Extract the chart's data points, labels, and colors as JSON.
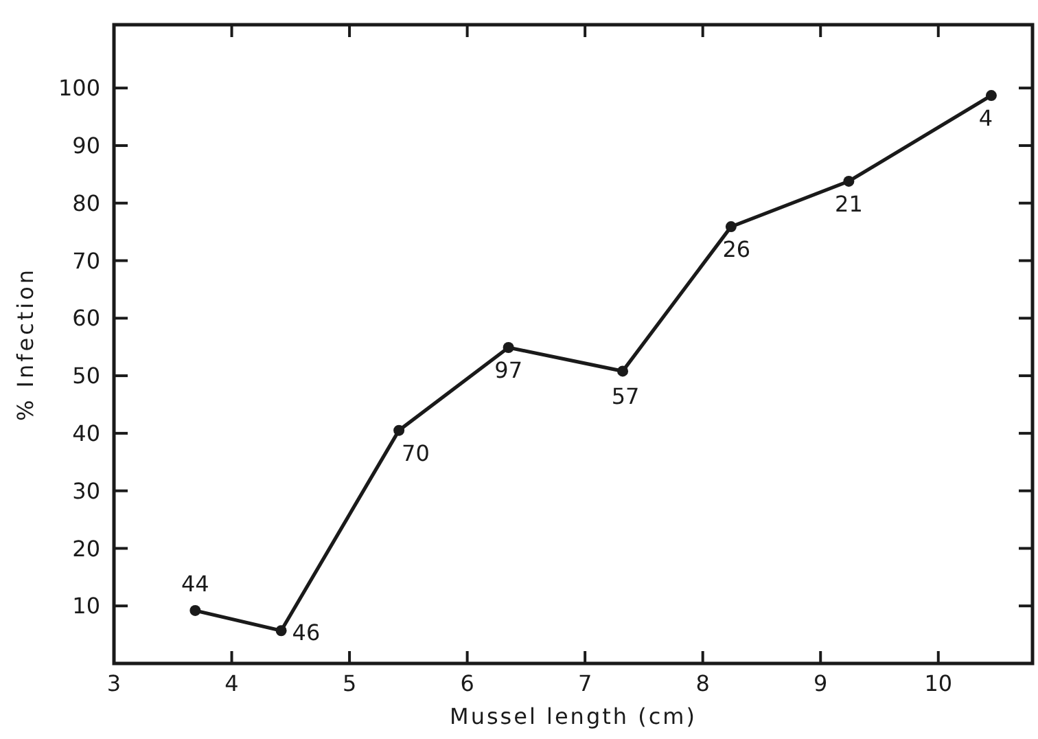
{
  "chart_data": {
    "type": "line",
    "xlabel": "Mussel length (cm)",
    "ylabel": "% Infection",
    "x": [
      3.69,
      4.42,
      5.42,
      6.35,
      7.32,
      8.24,
      9.24,
      10.45
    ],
    "series": [
      {
        "color": "#1a1a1a",
        "values": [
          9.2,
          5.7,
          40.5,
          54.9,
          50.8,
          75.9,
          83.8,
          98.7
        ]
      }
    ],
    "xlim": [
      3,
      10.8
    ],
    "xticks": [
      3,
      4,
      5,
      6,
      7,
      8,
      9,
      10
    ],
    "ylim": [
      0,
      111
    ],
    "yticks": [
      10,
      20,
      30,
      40,
      50,
      60,
      70,
      80,
      90,
      100
    ],
    "marker": "circle",
    "line_style": "solid",
    "grid": false,
    "annotations": [
      {
        "text": "44",
        "x": 3.69,
        "y": 9.2
      },
      {
        "text": "46",
        "x": 4.42,
        "y": 5.7
      },
      {
        "text": "70",
        "x": 5.42,
        "y": 40.5
      },
      {
        "text": "97",
        "x": 6.35,
        "y": 54.9
      },
      {
        "text": "57",
        "x": 7.32,
        "y": 50.8
      },
      {
        "text": "26",
        "x": 8.24,
        "y": 75.9
      },
      {
        "text": "21",
        "x": 9.24,
        "y": 83.8
      },
      {
        "text": "4",
        "x": 10.45,
        "y": 98.7
      }
    ]
  }
}
